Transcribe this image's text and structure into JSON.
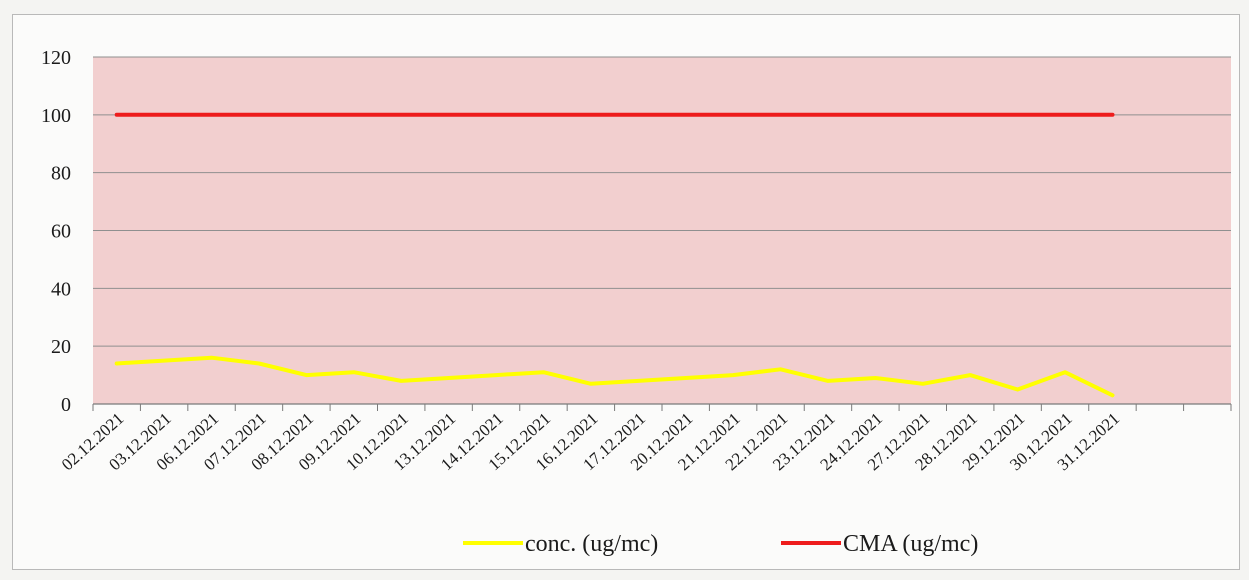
{
  "chart_data": {
    "type": "line",
    "categories": [
      "02.12.2021",
      "03.12.2021",
      "06.12.2021",
      "07.12.2021",
      "08.12.2021",
      "09.12.2021",
      "10.12.2021",
      "13.12.2021",
      "14.12.2021",
      "15.12.2021",
      "16.12.2021",
      "17.12.2021",
      "20.12.2021",
      "21.12.2021",
      "22.12.2021",
      "23.12.2021",
      "24.12.2021",
      "27.12.2021",
      "28.12.2021",
      "29.12.2021",
      "30.12.2021",
      "31.12.2021"
    ],
    "series": [
      {
        "name": "conc. (ug/mc)",
        "color": "#ffff00",
        "values": [
          14,
          15,
          16,
          14,
          10,
          11,
          8,
          9,
          10,
          11,
          7,
          8,
          9,
          10,
          12,
          8,
          9,
          7,
          10,
          5,
          11,
          3
        ]
      },
      {
        "name": "CMA (ug/mc)",
        "color": "#ee1c1c",
        "values": [
          100,
          100,
          100,
          100,
          100,
          100,
          100,
          100,
          100,
          100,
          100,
          100,
          100,
          100,
          100,
          100,
          100,
          100,
          100,
          100,
          100,
          100
        ]
      }
    ],
    "y_ticks": [
      "0",
      "20",
      "40",
      "60",
      "80",
      "100",
      "120"
    ],
    "ylim": [
      0,
      120
    ],
    "grid": true,
    "plot_background": "#f2cfcf",
    "legend_position": "bottom"
  }
}
